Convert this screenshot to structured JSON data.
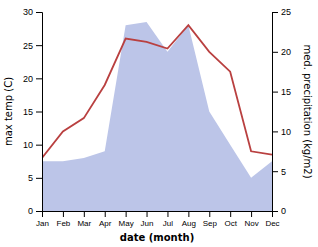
{
  "chart_data": {
    "type": "line",
    "xlabel": "date (month)",
    "ylabel": "max temp (C)",
    "y2label": "med. precipitation (kg/m2)",
    "categories": [
      "Jan",
      "Feb",
      "Mar",
      "Apr",
      "May",
      "Jun",
      "Jul",
      "Aug",
      "Sep",
      "Oct",
      "Nov",
      "Dec"
    ],
    "series": [
      {
        "type": "area",
        "color": "#bcc5e8",
        "values": [
          7.5,
          7.5,
          8,
          9,
          28,
          28.5,
          24,
          28,
          15,
          10,
          5,
          7.5
        ]
      },
      {
        "type": "line",
        "color": "#b94040",
        "values": [
          8,
          12,
          14,
          19,
          26,
          25.5,
          24.5,
          28,
          24,
          21,
          9,
          8.5
        ]
      }
    ],
    "ylim": [
      0,
      30
    ],
    "yticks": [
      0,
      5,
      10,
      15,
      20,
      25,
      30
    ],
    "y2lim": [
      0,
      25
    ],
    "y2ticks": [
      0,
      5,
      10,
      15,
      20,
      25
    ],
    "grid": false
  }
}
